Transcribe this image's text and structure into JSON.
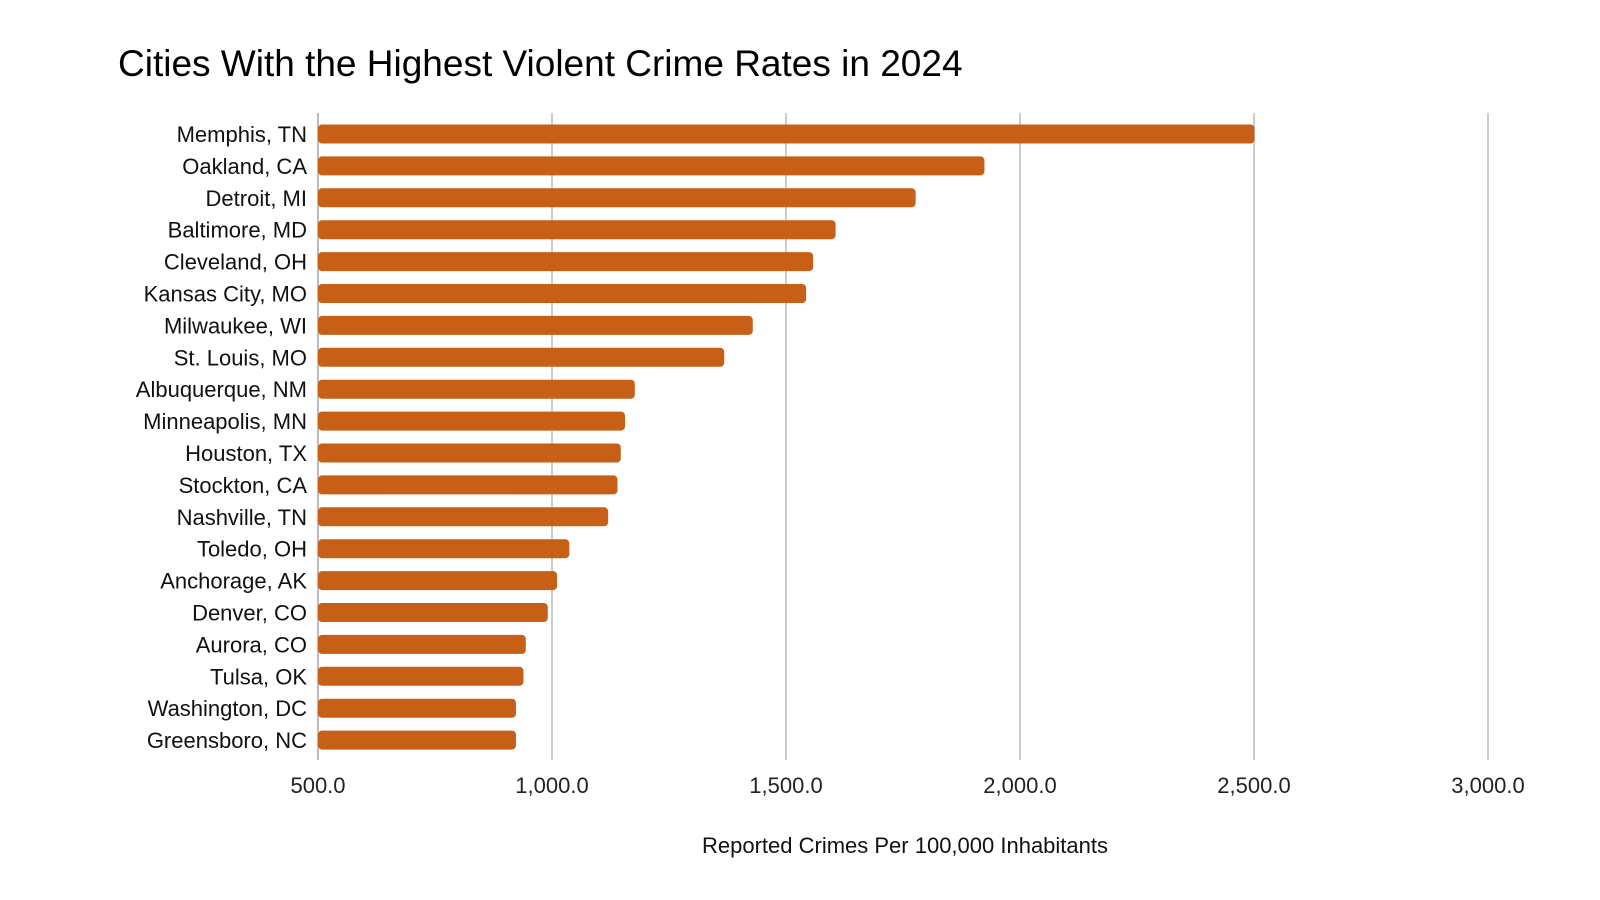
{
  "chart_data": {
    "type": "bar",
    "orientation": "horizontal",
    "title": "Cities With the Highest Violent Crime Rates in 2024",
    "xlabel": "Reported Crimes Per 100,000 Inhabitants",
    "ylabel": "",
    "xlim": [
      500,
      3000
    ],
    "xticks": [
      500,
      1000,
      1500,
      2000,
      2500,
      3000
    ],
    "xtick_labels": [
      "500.0",
      "1,000.0",
      "1,500.0",
      "2,000.0",
      "2,500.0",
      "3,000.0"
    ],
    "grid": true,
    "bar_color": "#c85f17",
    "categories": [
      "Memphis, TN",
      "Oakland, CA",
      "Detroit, MI",
      "Baltimore, MD",
      "Cleveland, OH",
      "Kansas City, MO",
      "Milwaukee, WI",
      "St. Louis, MO",
      "Albuquerque, NM",
      "Minneapolis, MN",
      "Houston, TX",
      "Stockton, CA",
      "Nashville, TN",
      "Toledo, OH",
      "Anchorage, AK",
      "Denver, CO",
      "Aurora, CO",
      "Tulsa, OK",
      "Washington, DC",
      "Greensboro, NC"
    ],
    "values": [
      2501,
      1924,
      1777,
      1606,
      1558,
      1543,
      1429,
      1368,
      1177,
      1156,
      1147,
      1140,
      1120,
      1037,
      1011,
      991,
      944,
      939,
      923,
      923
    ]
  }
}
